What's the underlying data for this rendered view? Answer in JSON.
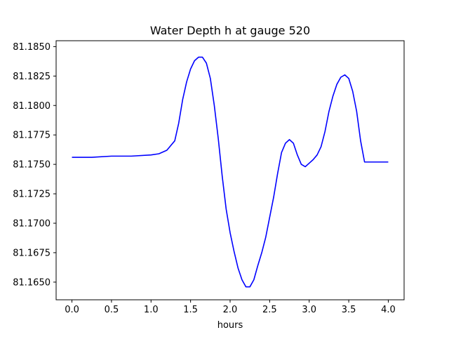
{
  "chart_data": {
    "type": "line",
    "title": "Water Depth h at gauge 520",
    "xlabel": "hours",
    "ylabel": "",
    "xlim": [
      -0.2,
      4.2
    ],
    "ylim": [
      81.1635,
      81.1855
    ],
    "xticks": [
      0.0,
      0.5,
      1.0,
      1.5,
      2.0,
      2.5,
      3.0,
      3.5,
      4.0
    ],
    "xtick_labels": [
      "0.0",
      "0.5",
      "1.0",
      "1.5",
      "2.0",
      "2.5",
      "3.0",
      "3.5",
      "4.0"
    ],
    "yticks": [
      81.165,
      81.1675,
      81.17,
      81.1725,
      81.175,
      81.1775,
      81.18,
      81.1825,
      81.185
    ],
    "ytick_labels": [
      "81.1650",
      "81.1675",
      "81.1700",
      "81.1725",
      "81.1750",
      "81.1775",
      "81.1800",
      "81.1825",
      "81.1850"
    ],
    "grid": false,
    "series": [
      {
        "color": "#0000ff",
        "x": [
          0.0,
          0.25,
          0.5,
          0.75,
          1.0,
          1.1,
          1.2,
          1.3,
          1.35,
          1.4,
          1.45,
          1.5,
          1.55,
          1.6,
          1.65,
          1.7,
          1.75,
          1.8,
          1.85,
          1.9,
          1.95,
          2.0,
          2.05,
          2.1,
          2.15,
          2.2,
          2.25,
          2.3,
          2.35,
          2.4,
          2.45,
          2.5,
          2.55,
          2.6,
          2.65,
          2.7,
          2.75,
          2.8,
          2.85,
          2.9,
          2.95,
          3.0,
          3.05,
          3.1,
          3.15,
          3.2,
          3.25,
          3.3,
          3.35,
          3.4,
          3.45,
          3.5,
          3.55,
          3.6,
          3.65,
          3.7,
          3.75,
          3.8,
          3.85,
          3.9,
          3.95,
          4.0
        ],
        "y": [
          81.1756,
          81.1756,
          81.1757,
          81.1757,
          81.1758,
          81.1759,
          81.1762,
          81.177,
          81.1785,
          81.1805,
          81.182,
          81.1831,
          81.1838,
          81.1841,
          81.1841,
          81.1836,
          81.1823,
          81.18,
          81.1772,
          81.174,
          81.1712,
          81.1692,
          81.1676,
          81.1662,
          81.1652,
          81.1646,
          81.1646,
          81.1652,
          81.1664,
          81.1675,
          81.1688,
          81.1705,
          81.1722,
          81.1742,
          81.176,
          81.1768,
          81.1771,
          81.1768,
          81.1758,
          81.175,
          81.1748,
          81.1751,
          81.1754,
          81.1758,
          81.1765,
          81.1778,
          81.1795,
          81.1808,
          81.1818,
          81.1824,
          81.1826,
          81.1823,
          81.1812,
          81.1795,
          81.177,
          81.1752,
          81.1752,
          81.1752,
          81.1752,
          81.1752,
          81.1752,
          81.1752
        ]
      }
    ]
  }
}
